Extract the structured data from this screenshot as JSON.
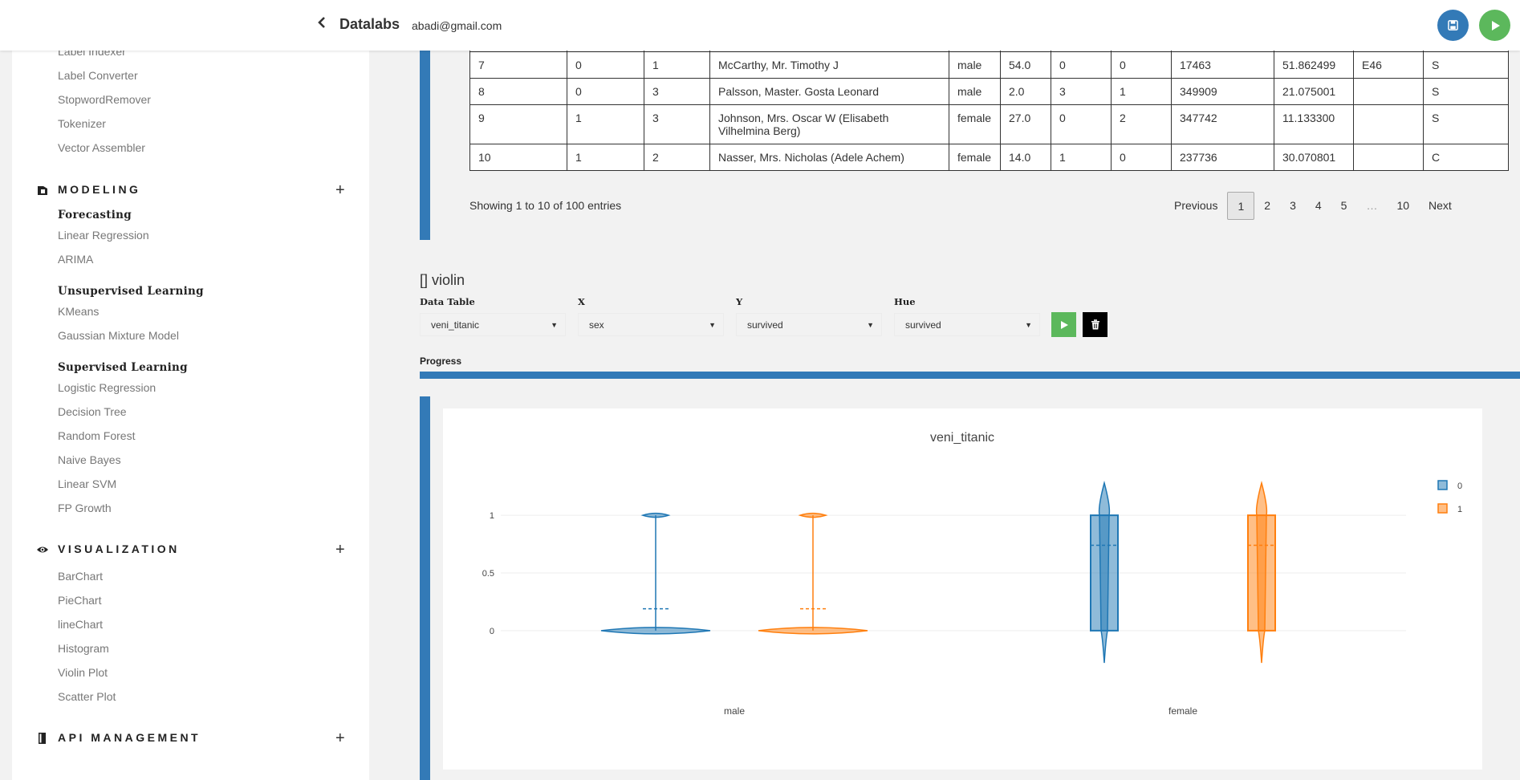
{
  "topbar": {
    "back_icon": "chevron-left-icon",
    "brand": "Datalabs",
    "user_email": "abadi@gmail.com",
    "save_icon": "floppy-disk-icon",
    "run_icon": "play-icon"
  },
  "sidebar": {
    "top_items": [
      "Label Indexer",
      "Label Converter",
      "StopwordRemover",
      "Tokenizer",
      "Vector Assembler"
    ],
    "modeling": {
      "title": "MODELING",
      "icon": "cube-icon",
      "forecasting": {
        "title": "Forecasting",
        "items": [
          "Linear Regression",
          "ARIMA"
        ]
      },
      "unsupervised": {
        "title": "Unsupervised Learning",
        "items": [
          "KMeans",
          "Gaussian Mixture Model"
        ]
      },
      "supervised": {
        "title": "Supervised Learning",
        "items": [
          "Logistic Regression",
          "Decision Tree",
          "Random Forest",
          "Naive Bayes",
          "Linear SVM",
          "FP Growth"
        ]
      }
    },
    "visualization": {
      "title": "VISUALIZATION",
      "icon": "eye-icon",
      "items": [
        "BarChart",
        "PieChart",
        "lineChart",
        "Histogram",
        "Violin Plot",
        "Scatter Plot"
      ]
    },
    "api": {
      "title": "API MANAGEMENT",
      "icon": "book-icon"
    },
    "plus": "+"
  },
  "table": {
    "rows": [
      [
        "7",
        "0",
        "1",
        "McCarthy, Mr. Timothy J",
        "male",
        "54.0",
        "0",
        "0",
        "17463",
        "51.862499",
        "E46",
        "S"
      ],
      [
        "8",
        "0",
        "3",
        "Palsson, Master. Gosta Leonard",
        "male",
        "2.0",
        "3",
        "1",
        "349909",
        "21.075001",
        "",
        "S"
      ],
      [
        "9",
        "1",
        "3",
        "Johnson, Mrs. Oscar W (Elisabeth Vilhelmina Berg)",
        "female",
        "27.0",
        "0",
        "2",
        "347742",
        "11.133300",
        "",
        "S"
      ],
      [
        "10",
        "1",
        "2",
        "Nasser, Mrs. Nicholas (Adele Achem)",
        "female",
        "14.0",
        "1",
        "0",
        "237736",
        "30.070801",
        "",
        "C"
      ]
    ],
    "showing": "Showing 1 to 10 of 100 entries",
    "pagination": [
      "Previous",
      "1",
      "2",
      "3",
      "4",
      "5",
      "…",
      "10",
      "Next"
    ],
    "active_page": "1"
  },
  "violin_section": {
    "title": "[] violin",
    "labels": {
      "data_table": "Data Table",
      "x": "X",
      "y": "Y",
      "hue": "Hue"
    },
    "values": {
      "data_table": "veni_titanic",
      "x": "sex",
      "y": "survived",
      "hue": "survived"
    },
    "run_icon": "play-icon",
    "delete_icon": "trash-icon",
    "progress_label": "Progress",
    "progress": 1.0
  },
  "colors": {
    "accent": "#337ab7",
    "green": "#5cb85c",
    "series0": "#1f77b4",
    "series1": "#ff7f0e"
  },
  "chart_data": {
    "type": "violin",
    "title": "veni_titanic",
    "categories": [
      "male",
      "female"
    ],
    "ylim": [
      -0.3,
      1.3
    ],
    "yticks": [
      "0",
      "0.5",
      "1"
    ],
    "legend_position": "top-right",
    "series": [
      {
        "name": "0",
        "mean": [
          0.19,
          0.74
        ],
        "q1": [
          0,
          0
        ],
        "q3": [
          0,
          1
        ],
        "min": [
          0,
          0
        ],
        "max": [
          1,
          1
        ]
      },
      {
        "name": "1",
        "mean": [
          0.19,
          0.74
        ],
        "q1": [
          0,
          0
        ],
        "q3": [
          0,
          1
        ],
        "min": [
          0,
          0
        ],
        "max": [
          1,
          1
        ]
      }
    ]
  }
}
